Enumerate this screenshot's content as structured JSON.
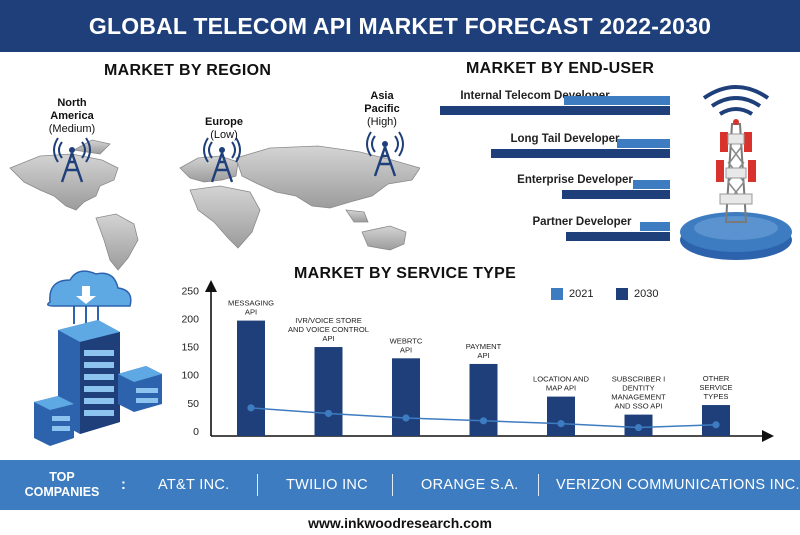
{
  "header": {
    "title": "GLOBAL TELECOM API MARKET FORECAST 2022-2030"
  },
  "region": {
    "title": "MARKET BY REGION",
    "labels": [
      {
        "name": "North America",
        "level": "(Medium)"
      },
      {
        "name": "Europe",
        "level": "(Low)"
      },
      {
        "name": "Asia Pacific",
        "level": "(High)"
      }
    ]
  },
  "end_user": {
    "title": "MARKET BY END-USER",
    "items": [
      {
        "label": "Internal Telecom Developer",
        "v2021": 0.46,
        "v2030": 1.0
      },
      {
        "label": "Long Tail Developer",
        "v2021": 0.23,
        "v2030": 0.78
      },
      {
        "label": "Enterprise Developer",
        "v2021": 0.16,
        "v2030": 0.47
      },
      {
        "label": "Partner Developer",
        "v2021": 0.13,
        "v2030": 0.45
      }
    ],
    "colors": {
      "y2021": "#3d7cc0",
      "y2030": "#1f3f7a"
    }
  },
  "service": {
    "title": "MARKET BY SERVICE TYPE",
    "legend": [
      {
        "label": "2021",
        "color": "#3d7cc0"
      },
      {
        "label": "2030",
        "color": "#1f3f7a"
      }
    ]
  },
  "chart_data": {
    "type": "bar",
    "title": "MARKET BY SERVICE TYPE",
    "categories": [
      [
        "MESSAGING",
        "API"
      ],
      [
        "IVR/VOICE STORE",
        "AND VOICE CONTROL",
        "API"
      ],
      [
        "WEBRTC",
        "API"
      ],
      [
        "PAYMENT",
        "API"
      ],
      [
        "LOCATION AND",
        "MAP API"
      ],
      [
        "SUBSCRIBER I",
        "DENTITY",
        "MANAGEMENT",
        "AND SSO API"
      ],
      [
        "OTHER",
        "SERVICE",
        "TYPES"
      ]
    ],
    "series": [
      {
        "name": "2030",
        "type": "bar",
        "color": "#1f3f7a",
        "values": [
          205,
          158,
          138,
          128,
          70,
          38,
          55
        ]
      },
      {
        "name": "2021",
        "type": "line",
        "color": "#3d7cc0",
        "values": [
          50,
          40,
          32,
          27,
          22,
          15,
          20
        ]
      }
    ],
    "yticks": [
      0,
      50,
      100,
      150,
      200,
      250
    ],
    "ylim": [
      0,
      270
    ],
    "xlabel": "",
    "ylabel": ""
  },
  "companies": {
    "label_line1": "TOP",
    "label_line2": "COMPANIES",
    "colon": ":",
    "names": [
      "AT&T INC.",
      "TWILIO INC",
      "ORANGE S.A.",
      "VERIZON COMMUNICATIONS INC."
    ]
  },
  "footer": {
    "website": "www.inkwoodresearch.com"
  }
}
